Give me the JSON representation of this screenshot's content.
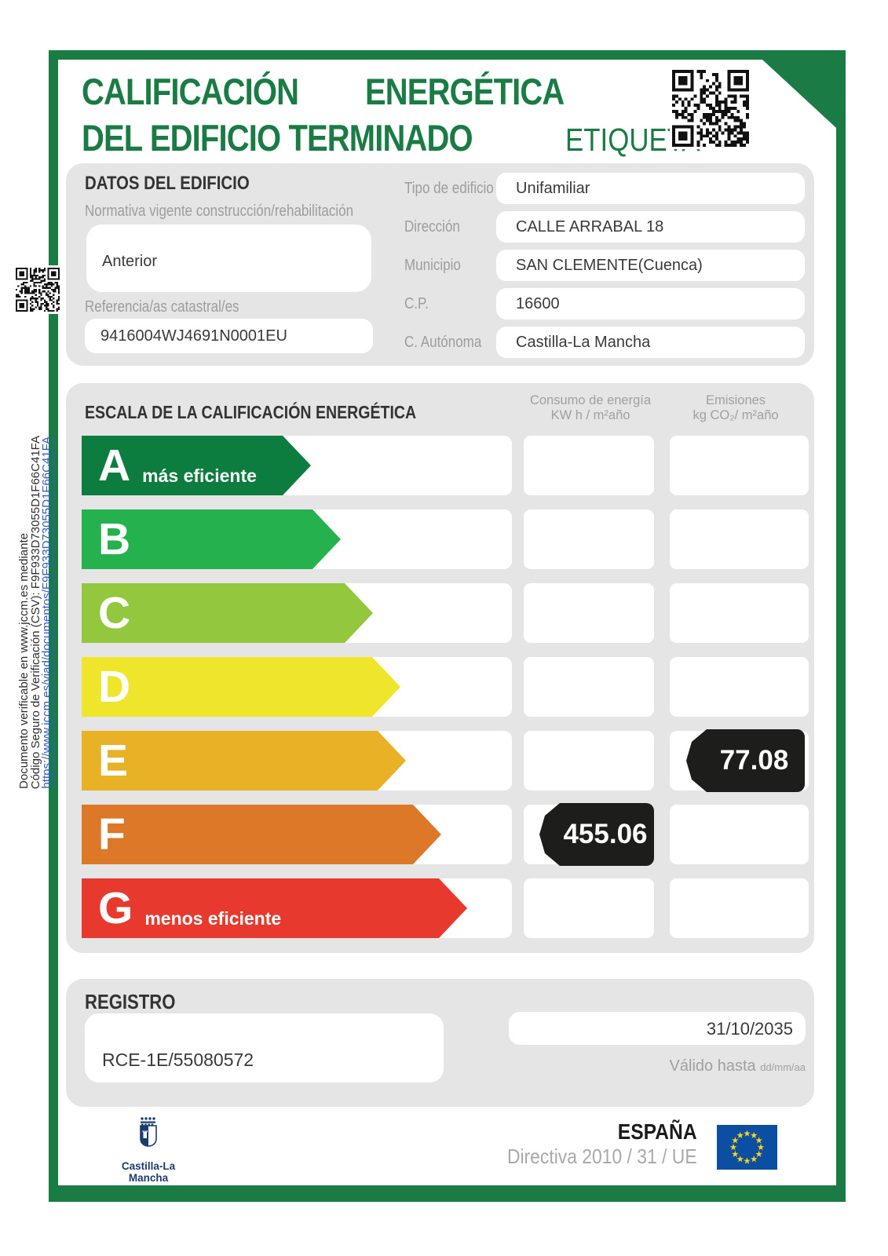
{
  "header": {
    "title_word1": "CALIFICACIÓN",
    "title_word2": "ENERGÉTICA",
    "title_line2": "DEL EDIFICIO TERMINADO",
    "etiqueta": "ETIQUETA"
  },
  "building": {
    "section_title": "DATOS DEL EDIFICIO",
    "normativa_label": "Normativa vigente construcción/rehabilitación",
    "normativa_value": "Anterior",
    "referencia_label": "Referencia/as catastral/es",
    "referencia_value": "9416004WJ4691N0001EU",
    "fields": [
      {
        "label": "Tipo de edificio",
        "value": "Unifamiliar"
      },
      {
        "label": "Dirección",
        "value": "CALLE ARRABAL 18"
      },
      {
        "label": "Municipio",
        "value": "SAN CLEMENTE(Cuenca)"
      },
      {
        "label": "C.P.",
        "value": "16600"
      },
      {
        "label": "C. Autónoma",
        "value": "Castilla-La Mancha"
      }
    ]
  },
  "scale": {
    "section_title": "ESCALA DE LA CALIFICACIÓN ENERGÉTICA",
    "consumo_header": [
      "Consumo de energía",
      "KW h / m²año"
    ],
    "emisiones_header": [
      "Emisiones",
      "kg CO₂/ m²año"
    ],
    "rows": [
      {
        "letter": "A",
        "note": "más eficiente",
        "color": "#0c7c3f",
        "arrow_width": 292,
        "consumo": "",
        "emisiones": ""
      },
      {
        "letter": "B",
        "note": "",
        "color": "#25b14e",
        "arrow_width": 330,
        "consumo": "",
        "emisiones": ""
      },
      {
        "letter": "C",
        "note": "",
        "color": "#93c83e",
        "arrow_width": 371,
        "consumo": "",
        "emisiones": ""
      },
      {
        "letter": "D",
        "note": "",
        "color": "#efe52a",
        "arrow_width": 406,
        "consumo": "",
        "emisiones": ""
      },
      {
        "letter": "E",
        "note": "",
        "color": "#e9b226",
        "arrow_width": 413,
        "consumo": "",
        "emisiones": "77.08"
      },
      {
        "letter": "F",
        "note": "",
        "color": "#dd7829",
        "arrow_width": 458,
        "consumo": "455.06",
        "emisiones": ""
      },
      {
        "letter": "G",
        "note": "menos eficiente",
        "color": "#e7392e",
        "arrow_width": 491,
        "consumo": "",
        "emisiones": ""
      }
    ]
  },
  "registro": {
    "section_title": "REGISTRO",
    "code": "RCE-1E/55080572",
    "valid_date": "31/10/2035",
    "valid_label": "Válido hasta ",
    "valid_format": "dd/mm/aa"
  },
  "footer": {
    "region_name": "Castilla-La Mancha",
    "country": "ESPAÑA",
    "directive": "Directiva 2010 / 31 / UE"
  },
  "sidebar": {
    "line1": "Documento verificable en www.jccm.es mediante",
    "line2": "Código Seguro de Verificación (CSV): F9F933D73055D1F66C41FA",
    "link": "https://www.jccm.es/viad/documentos/F9F933D73055D1F66C41FA"
  },
  "colors": {
    "brand_green": "#1a7c44",
    "tag_black": "#1d1d1b",
    "eu_blue": "#0b4ea2",
    "star_yellow": "#ffd617",
    "navy": "#1c3c6e",
    "link_blue": "#2f5bc7"
  }
}
